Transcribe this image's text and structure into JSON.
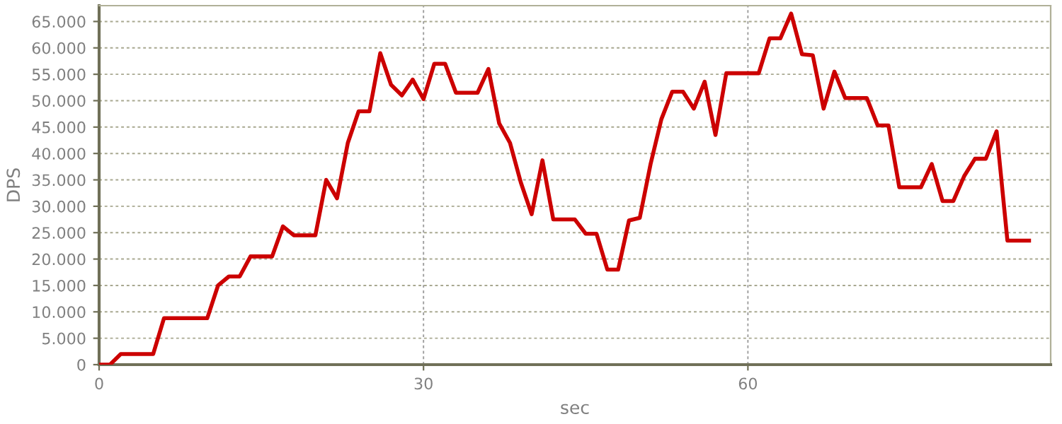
{
  "chart_data": {
    "type": "line",
    "xlabel": "sec",
    "ylabel": "DPS",
    "xlim": [
      0,
      88
    ],
    "xticks": [
      0,
      30,
      60
    ],
    "ylim": [
      0,
      68000
    ],
    "yticks": [
      {
        "value": 0,
        "label": "0"
      },
      {
        "value": 5000,
        "label": "5.000"
      },
      {
        "value": 10000,
        "label": "10.000"
      },
      {
        "value": 15000,
        "label": "15.000"
      },
      {
        "value": 20000,
        "label": "20.000"
      },
      {
        "value": 25000,
        "label": "25.000"
      },
      {
        "value": 30000,
        "label": "30.000"
      },
      {
        "value": 35000,
        "label": "35.000"
      },
      {
        "value": 40000,
        "label": "40.000"
      },
      {
        "value": 45000,
        "label": "45.000"
      },
      {
        "value": 50000,
        "label": "50.000"
      },
      {
        "value": 55000,
        "label": "55.000"
      },
      {
        "value": 60000,
        "label": "60.000"
      },
      {
        "value": 65000,
        "label": "65.000"
      }
    ],
    "grid": true,
    "marker": "none",
    "line_style": "solid",
    "series": [
      {
        "color": "#cc0000",
        "x": [
          0,
          1,
          2,
          3,
          4,
          5,
          6,
          7,
          8,
          9,
          10,
          11,
          12,
          13,
          14,
          15,
          16,
          17,
          18,
          19,
          20,
          21,
          22,
          23,
          24,
          25,
          26,
          27,
          28,
          29,
          30,
          31,
          32,
          33,
          34,
          35,
          36,
          37,
          38,
          39,
          40,
          41,
          42,
          43,
          44,
          45,
          46,
          47,
          48,
          49,
          50,
          51,
          52,
          53,
          54,
          55,
          56,
          57,
          58,
          59,
          60,
          61,
          62,
          63,
          64,
          65,
          66,
          67,
          68,
          69,
          70,
          71,
          72,
          73,
          74,
          75,
          76,
          77,
          78,
          79,
          80,
          81,
          82,
          83,
          84,
          85,
          86
        ],
        "values": [
          0,
          0,
          2000,
          2000,
          2000,
          2000,
          8800,
          8800,
          8800,
          8800,
          8800,
          15000,
          16700,
          16700,
          20500,
          20500,
          20500,
          26200,
          24500,
          24500,
          24500,
          35000,
          31500,
          42000,
          48000,
          48000,
          59000,
          53000,
          51000,
          54000,
          50300,
          57000,
          57000,
          51500,
          51500,
          51500,
          56000,
          45700,
          42000,
          34500,
          28500,
          38700,
          27500,
          27500,
          27500,
          24800,
          24800,
          18000,
          18000,
          27300,
          27800,
          38000,
          46500,
          51700,
          51700,
          48500,
          53600,
          43500,
          55200,
          55200,
          55200,
          55200,
          61800,
          61800,
          66500,
          58800,
          58600,
          48500,
          55500,
          50500,
          50500,
          50500,
          45300,
          45300,
          33600,
          33600,
          33600,
          38000,
          31000,
          31000,
          35700,
          39000,
          39000,
          44200,
          23500,
          23500,
          23500
        ]
      }
    ]
  }
}
